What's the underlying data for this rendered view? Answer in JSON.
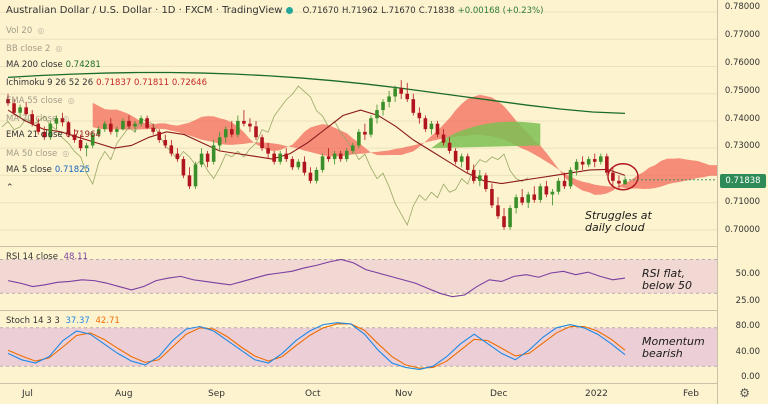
{
  "title": {
    "symbol": "Australian Dollar / U.S. Dollar · 1D · FXCM · TradingView",
    "o": "O.71670",
    "h": "H.71962",
    "l": "L.71670",
    "c": "C.71838",
    "chg": "+0.00168 (+0.23%)"
  },
  "legend": [
    {
      "label": "Vol 20",
      "value": "",
      "dim": true
    },
    {
      "label": "BB close 2",
      "value": "",
      "dim": true
    },
    {
      "label": "MA 200 close",
      "value": "0.74281",
      "color": "#1b6b2a",
      "dim": false
    },
    {
      "label": "Ichimoku 9 26 52 26",
      "value": "0.71837  0.71811  0.72646",
      "color": "#d44",
      "dim": false
    },
    {
      "label": "EMA 55 close",
      "value": "",
      "dim": true
    },
    {
      "label": "MA 20 close",
      "value": "",
      "dim": true
    },
    {
      "label": "EMA 21 close",
      "value": "0.71964",
      "color": "#8b1a1a",
      "dim": false
    },
    {
      "label": "MA 50 close",
      "value": "",
      "dim": true
    },
    {
      "label": "MA 5 close",
      "value": "0.71825",
      "color": "#1565c0",
      "dim": false
    }
  ],
  "price_axis": [
    "0.78000",
    "0.77000",
    "0.76000",
    "0.75000",
    "0.74000",
    "0.73000",
    "0.72000",
    "0.71000",
    "0.70000"
  ],
  "last_price": "0.71838",
  "time_axis": [
    "Jul",
    "Aug",
    "Sep",
    "Oct",
    "Nov",
    "Dec",
    "2022",
    "Feb"
  ],
  "rsi": {
    "label": "RSI 14 close",
    "value": "48.11",
    "axis": [
      "50.00",
      "25.00"
    ]
  },
  "stoch": {
    "label": "Stoch 14 3 3",
    "k": "37.37",
    "d": "42.71",
    "axis": [
      "80.00",
      "40.00",
      "0.00"
    ]
  },
  "annotations": {
    "price": "Struggles at\ndaily cloud",
    "rsi": "RSI flat,\nbelow 50",
    "stoch": "Momentum\nbearish"
  },
  "colors": {
    "bull": "#3a8f2a",
    "bear": "#b0141c",
    "cloud_bear": "#f26b5b",
    "cloud_bull": "#7cbf52",
    "ma200": "#1b6b2a",
    "ema21": "#8b1a1a",
    "rsi": "#7b3fa0",
    "stoch_k": "#1e88e5",
    "stoch_d": "#ef6c00"
  },
  "chart_data": {
    "type": "candlestick",
    "ylim": [
      0.697,
      0.7815
    ],
    "candles": [
      [
        0.748,
        0.75,
        0.7455,
        0.7465
      ],
      [
        0.7465,
        0.748,
        0.742,
        0.743
      ],
      [
        0.743,
        0.746,
        0.741,
        0.745
      ],
      [
        0.745,
        0.747,
        0.742,
        0.7425
      ],
      [
        0.7425,
        0.744,
        0.738,
        0.739
      ],
      [
        0.739,
        0.741,
        0.735,
        0.736
      ],
      [
        0.736,
        0.738,
        0.733,
        0.734
      ],
      [
        0.734,
        0.74,
        0.733,
        0.739
      ],
      [
        0.739,
        0.742,
        0.737,
        0.741
      ],
      [
        0.741,
        0.743,
        0.738,
        0.7395
      ],
      [
        0.7395,
        0.74,
        0.734,
        0.735
      ],
      [
        0.735,
        0.737,
        0.732,
        0.733
      ],
      [
        0.733,
        0.735,
        0.729,
        0.73
      ],
      [
        0.73,
        0.732,
        0.727,
        0.731
      ],
      [
        0.731,
        0.736,
        0.73,
        0.735
      ],
      [
        0.735,
        0.738,
        0.734,
        0.737
      ],
      [
        0.737,
        0.74,
        0.736,
        0.739
      ],
      [
        0.739,
        0.741,
        0.735,
        0.736
      ],
      [
        0.736,
        0.738,
        0.734,
        0.737
      ],
      [
        0.737,
        0.741,
        0.7365,
        0.74
      ],
      [
        0.74,
        0.742,
        0.737,
        0.738
      ],
      [
        0.738,
        0.74,
        0.736,
        0.739
      ],
      [
        0.739,
        0.742,
        0.738,
        0.741
      ],
      [
        0.741,
        0.742,
        0.737,
        0.7375
      ],
      [
        0.7375,
        0.739,
        0.735,
        0.736
      ],
      [
        0.736,
        0.737,
        0.732,
        0.733
      ],
      [
        0.733,
        0.735,
        0.73,
        0.731
      ],
      [
        0.731,
        0.733,
        0.727,
        0.728
      ],
      [
        0.728,
        0.73,
        0.725,
        0.726
      ],
      [
        0.726,
        0.727,
        0.719,
        0.72
      ],
      [
        0.72,
        0.723,
        0.715,
        0.716
      ],
      [
        0.716,
        0.725,
        0.715,
        0.724
      ],
      [
        0.724,
        0.73,
        0.723,
        0.728
      ],
      [
        0.728,
        0.729,
        0.723,
        0.725
      ],
      [
        0.725,
        0.733,
        0.724,
        0.731
      ],
      [
        0.731,
        0.736,
        0.729,
        0.734
      ],
      [
        0.734,
        0.738,
        0.732,
        0.737
      ],
      [
        0.737,
        0.74,
        0.734,
        0.735
      ],
      [
        0.735,
        0.742,
        0.734,
        0.74
      ],
      [
        0.74,
        0.744,
        0.738,
        0.739
      ],
      [
        0.739,
        0.741,
        0.736,
        0.738
      ],
      [
        0.738,
        0.74,
        0.733,
        0.734
      ],
      [
        0.734,
        0.735,
        0.729,
        0.73
      ],
      [
        0.73,
        0.732,
        0.726,
        0.728
      ],
      [
        0.728,
        0.729,
        0.724,
        0.725
      ],
      [
        0.725,
        0.729,
        0.724,
        0.728
      ],
      [
        0.728,
        0.73,
        0.725,
        0.726
      ],
      [
        0.726,
        0.727,
        0.722,
        0.723
      ],
      [
        0.723,
        0.726,
        0.722,
        0.725
      ],
      [
        0.725,
        0.727,
        0.72,
        0.721
      ],
      [
        0.721,
        0.723,
        0.717,
        0.718
      ],
      [
        0.718,
        0.723,
        0.717,
        0.722
      ],
      [
        0.722,
        0.728,
        0.721,
        0.727
      ],
      [
        0.727,
        0.73,
        0.725,
        0.726
      ],
      [
        0.726,
        0.729,
        0.724,
        0.728
      ],
      [
        0.728,
        0.729,
        0.725,
        0.726
      ],
      [
        0.726,
        0.73,
        0.725,
        0.729
      ],
      [
        0.729,
        0.732,
        0.728,
        0.731
      ],
      [
        0.731,
        0.737,
        0.73,
        0.736
      ],
      [
        0.736,
        0.739,
        0.733,
        0.735
      ],
      [
        0.735,
        0.742,
        0.734,
        0.741
      ],
      [
        0.741,
        0.746,
        0.739,
        0.744
      ],
      [
        0.744,
        0.748,
        0.742,
        0.747
      ],
      [
        0.747,
        0.751,
        0.745,
        0.749
      ],
      [
        0.749,
        0.753,
        0.747,
        0.752
      ],
      [
        0.752,
        0.755,
        0.748,
        0.75
      ],
      [
        0.75,
        0.754,
        0.747,
        0.748
      ],
      [
        0.748,
        0.75,
        0.742,
        0.743
      ],
      [
        0.743,
        0.745,
        0.739,
        0.741
      ],
      [
        0.741,
        0.742,
        0.736,
        0.737
      ],
      [
        0.737,
        0.74,
        0.735,
        0.739
      ],
      [
        0.739,
        0.74,
        0.734,
        0.735
      ],
      [
        0.735,
        0.737,
        0.731,
        0.732
      ],
      [
        0.732,
        0.734,
        0.728,
        0.729
      ],
      [
        0.729,
        0.73,
        0.724,
        0.725
      ],
      [
        0.725,
        0.728,
        0.723,
        0.727
      ],
      [
        0.727,
        0.728,
        0.721,
        0.722
      ],
      [
        0.722,
        0.724,
        0.717,
        0.718
      ],
      [
        0.718,
        0.722,
        0.716,
        0.72
      ],
      [
        0.72,
        0.721,
        0.714,
        0.715
      ],
      [
        0.715,
        0.717,
        0.708,
        0.709
      ],
      [
        0.709,
        0.712,
        0.704,
        0.705
      ],
      [
        0.705,
        0.708,
        0.7,
        0.701
      ],
      [
        0.701,
        0.709,
        0.7,
        0.708
      ],
      [
        0.708,
        0.713,
        0.706,
        0.712
      ],
      [
        0.712,
        0.715,
        0.709,
        0.71
      ],
      [
        0.71,
        0.714,
        0.708,
        0.713
      ],
      [
        0.713,
        0.716,
        0.71,
        0.711
      ],
      [
        0.711,
        0.717,
        0.71,
        0.716
      ],
      [
        0.716,
        0.718,
        0.712,
        0.713
      ],
      [
        0.713,
        0.715,
        0.709,
        0.714
      ],
      [
        0.714,
        0.719,
        0.713,
        0.718
      ],
      [
        0.718,
        0.721,
        0.715,
        0.716
      ],
      [
        0.716,
        0.723,
        0.715,
        0.722
      ],
      [
        0.722,
        0.726,
        0.72,
        0.725
      ],
      [
        0.725,
        0.727,
        0.722,
        0.724
      ],
      [
        0.724,
        0.727,
        0.723,
        0.726
      ],
      [
        0.726,
        0.728,
        0.723,
        0.725
      ],
      [
        0.725,
        0.728,
        0.724,
        0.727
      ],
      [
        0.727,
        0.728,
        0.72,
        0.721
      ],
      [
        0.721,
        0.723,
        0.716,
        0.718
      ],
      [
        0.718,
        0.72,
        0.715,
        0.717
      ],
      [
        0.7167,
        0.7196,
        0.7167,
        0.7184
      ]
    ],
    "ma200": [
      0.756,
      0.7567,
      0.7572,
      0.7576,
      0.7578,
      0.7578,
      0.7576,
      0.7572,
      0.7566,
      0.7558,
      0.7548,
      0.7536,
      0.7522,
      0.7506,
      0.749,
      0.7474,
      0.7458,
      0.7444,
      0.7433,
      0.7428
    ],
    "ema21": [
      0.744,
      0.74,
      0.737,
      0.736,
      0.734,
      0.732,
      0.73,
      0.731,
      0.734,
      0.736,
      0.735,
      0.732,
      0.729,
      0.728,
      0.727,
      0.726,
      0.728,
      0.732,
      0.737,
      0.742,
      0.744,
      0.742,
      0.738,
      0.733,
      0.729,
      0.725,
      0.721,
      0.718,
      0.717,
      0.718,
      0.719,
      0.72,
      0.721,
      0.722,
      0.7222,
      0.72
    ],
    "rsi": [
      45,
      42,
      38,
      40,
      43,
      44,
      46,
      45,
      42,
      38,
      34,
      38,
      45,
      48,
      50,
      46,
      44,
      42,
      40,
      44,
      48,
      52,
      54,
      56,
      60,
      63,
      67,
      70,
      66,
      58,
      54,
      50,
      46,
      42,
      36,
      30,
      26,
      28,
      38,
      46,
      44,
      50,
      52,
      49,
      54,
      56,
      52,
      55,
      50,
      46,
      48
    ],
    "stoch_k": [
      40,
      30,
      25,
      35,
      60,
      75,
      70,
      55,
      40,
      28,
      22,
      35,
      60,
      78,
      82,
      75,
      60,
      45,
      30,
      25,
      40,
      60,
      75,
      85,
      88,
      86,
      70,
      45,
      25,
      18,
      15,
      20,
      35,
      55,
      70,
      55,
      40,
      30,
      45,
      65,
      80,
      85,
      80,
      70,
      55,
      38
    ],
    "stoch_d": [
      45,
      36,
      28,
      33,
      50,
      68,
      72,
      62,
      48,
      35,
      26,
      30,
      50,
      70,
      80,
      78,
      66,
      50,
      36,
      28,
      35,
      52,
      68,
      80,
      86,
      86,
      76,
      55,
      35,
      22,
      17,
      18,
      28,
      45,
      62,
      60,
      48,
      36,
      40,
      56,
      72,
      82,
      82,
      75,
      62,
      45
    ]
  }
}
